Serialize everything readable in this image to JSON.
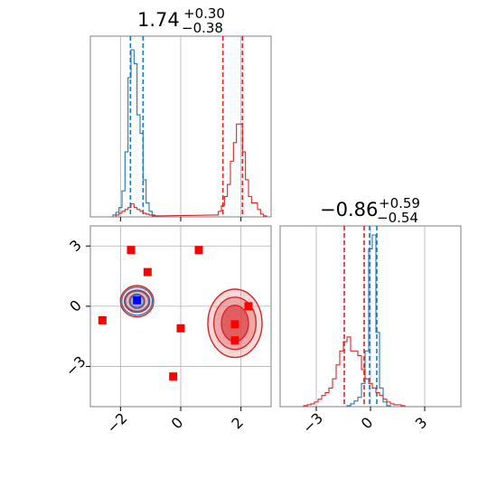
{
  "titles": {
    "p1": {
      "main": "1.74",
      "sup": "+0.30",
      "sub": "−0.38"
    },
    "p2": {
      "main": "−0.86",
      "sup": "+0.59",
      "sub": "−0.54"
    }
  },
  "colors": {
    "blue": "#1f77b4",
    "red": "#d62728",
    "marker_red": "#ff0000",
    "marker_blue": "#0000ff",
    "grid": "#b0b0b0",
    "frame": "#808080"
  },
  "chart_data": [
    {
      "type": "histogram",
      "panel": "marginal-x",
      "title": "1.74 +0.30 −0.38",
      "xlim": [
        -3,
        3
      ],
      "series": [
        {
          "color": "#1f77b4",
          "quantiles": [
            -1.67,
            -1.25
          ],
          "bin_width": 0.1,
          "bins_x": [
            -2.2,
            -2.1,
            -2.0,
            -1.9,
            -1.8,
            -1.7,
            -1.6,
            -1.5,
            -1.4,
            -1.3,
            -1.2,
            -1.1,
            -1.0,
            -0.9,
            -0.8
          ],
          "counts": [
            2,
            5,
            10,
            28,
            70,
            150,
            180,
            165,
            110,
            90,
            40,
            15,
            6,
            2,
            1
          ]
        },
        {
          "color": "#d62728",
          "quantiles": [
            1.4,
            2.05
          ],
          "bin_width": 0.1,
          "bins_x": [
            -2.1,
            -2.0,
            -1.9,
            -1.8,
            -1.7,
            -1.6,
            -1.5,
            -1.4,
            -1.3,
            -1.2,
            -1.1,
            -1.0,
            -0.9,
            -0.8,
            1.2,
            1.3,
            1.4,
            1.5,
            1.6,
            1.7,
            1.8,
            1.9,
            2.0,
            2.1,
            2.2,
            2.3,
            2.4,
            2.5,
            2.6,
            2.7,
            2.8
          ],
          "counts": [
            2,
            4,
            6,
            8,
            10,
            14,
            10,
            8,
            6,
            4,
            3,
            2,
            1,
            1,
            2,
            6,
            12,
            22,
            35,
            60,
            80,
            100,
            100,
            70,
            40,
            22,
            15,
            15,
            8,
            3,
            1
          ]
        }
      ]
    },
    {
      "type": "histogram",
      "panel": "marginal-y",
      "title": "−0.86 +0.59 −0.54",
      "xlim": [
        -5,
        5
      ],
      "xticks": [
        "−3",
        "0",
        "3"
      ],
      "series": [
        {
          "color": "#1f77b4",
          "quantiles": [
            -0.05,
            0.35
          ],
          "bin_width": 0.2,
          "bins_x": [
            -1.2,
            -1.0,
            -0.8,
            -0.6,
            -0.4,
            -0.2,
            0.0,
            0.2,
            0.4,
            0.6,
            0.8,
            1.0
          ],
          "counts": [
            1,
            3,
            6,
            10,
            25,
            60,
            170,
            185,
            80,
            20,
            5,
            1
          ]
        },
        {
          "color": "#d62728",
          "quantiles": [
            -1.45,
            -0.35
          ],
          "bin_width": 0.2,
          "bins_x": [
            -3.6,
            -3.4,
            -3.2,
            -3.0,
            -2.8,
            -2.6,
            -2.4,
            -2.2,
            -2.0,
            -1.8,
            -1.6,
            -1.4,
            -1.2,
            -1.0,
            -0.8,
            -0.6,
            -0.4,
            -0.2,
            0.0,
            0.2,
            0.4,
            0.6,
            0.8,
            1.0,
            1.2,
            1.4,
            1.6,
            1.8
          ],
          "counts": [
            1,
            2,
            3,
            5,
            8,
            12,
            15,
            20,
            30,
            45,
            60,
            70,
            75,
            60,
            60,
            55,
            40,
            30,
            25,
            20,
            15,
            12,
            8,
            5,
            3,
            2,
            2,
            1
          ]
        }
      ]
    },
    {
      "type": "scatter",
      "panel": "joint",
      "xlim": [
        -3,
        3
      ],
      "ylim": [
        -5,
        4
      ],
      "xticks": [
        "−2",
        "0",
        "2"
      ],
      "yticks": [
        "−3",
        "0",
        "3"
      ],
      "red_markers": [
        [
          -1.65,
          2.8
        ],
        [
          0.6,
          2.8
        ],
        [
          -1.1,
          1.7
        ],
        [
          -2.6,
          -0.7
        ],
        [
          0.0,
          -1.1
        ],
        [
          1.8,
          -0.9
        ],
        [
          1.8,
          -1.7
        ],
        [
          2.25,
          0.0
        ],
        [
          -0.25,
          -3.5
        ]
      ],
      "blue_markers": [
        [
          -1.45,
          0.3
        ]
      ],
      "blue_cluster": {
        "center": [
          -1.45,
          0.25
        ],
        "contour_radii": [
          [
            0.25,
            0.35
          ],
          [
            0.42,
            0.55
          ],
          [
            0.55,
            0.78
          ]
        ]
      },
      "red_cluster": {
        "center": [
          1.8,
          -0.85
        ],
        "contour_radii": [
          [
            0.45,
            0.9
          ],
          [
            0.7,
            1.3
          ],
          [
            0.9,
            1.7
          ]
        ]
      }
    }
  ]
}
